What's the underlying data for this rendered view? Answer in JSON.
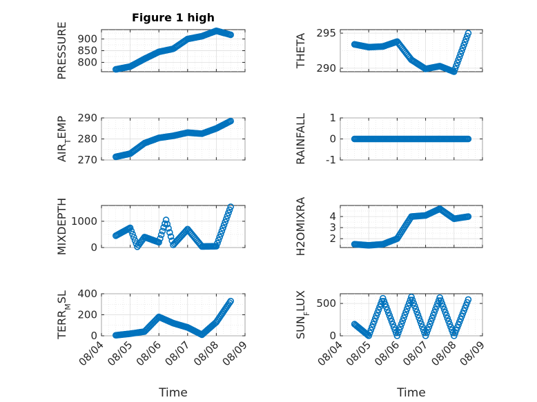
{
  "chart_data": [
    {
      "type": "scatter",
      "title": "Figure 1 high",
      "ylabel": "PRESSURE",
      "xlabel": "",
      "xlim": [
        "08/04",
        "08/09"
      ],
      "ylim": [
        760,
        940
      ],
      "yticks": [
        800,
        850,
        900
      ],
      "xticks": [
        "08/04",
        "08/05",
        "08/06",
        "08/07",
        "08/08",
        "08/09"
      ],
      "show_xticklabels": false,
      "grid": true,
      "series": [
        {
          "x": [
            "08/04 12:00",
            "08/05 00:00",
            "08/05 12:00",
            "08/06 00:00",
            "08/06 12:00",
            "08/07 00:00",
            "08/07 12:00",
            "08/08 00:00",
            "08/08 12:00"
          ],
          "y": [
            770,
            782,
            815,
            845,
            858,
            900,
            912,
            935,
            918
          ]
        }
      ]
    },
    {
      "type": "scatter",
      "title": "",
      "ylabel": "THETA",
      "xlabel": "",
      "xlim": [
        "08/04",
        "08/09"
      ],
      "ylim": [
        289.5,
        295.5
      ],
      "yticks": [
        290,
        295
      ],
      "xticks": [
        "08/04",
        "08/05",
        "08/06",
        "08/07",
        "08/08",
        "08/09"
      ],
      "show_xticklabels": false,
      "grid": true,
      "series": [
        {
          "x": [
            "08/04 12:00",
            "08/05 00:00",
            "08/05 12:00",
            "08/06 00:00",
            "08/06 12:00",
            "08/07 00:00",
            "08/07 12:00",
            "08/08 00:00",
            "08/08 12:00"
          ],
          "y": [
            293.4,
            293.0,
            293.1,
            293.8,
            291.2,
            289.9,
            290.3,
            289.5,
            295.0
          ]
        }
      ]
    },
    {
      "type": "scatter",
      "title": "",
      "ylabel": "AIR_TEMP",
      "xlabel": "",
      "xlim": [
        "08/04",
        "08/09"
      ],
      "ylim": [
        270,
        290
      ],
      "yticks": [
        270,
        280,
        290
      ],
      "xticks": [
        "08/04",
        "08/05",
        "08/06",
        "08/07",
        "08/08",
        "08/09"
      ],
      "show_xticklabels": false,
      "grid": true,
      "series": [
        {
          "x": [
            "08/04 12:00",
            "08/05 00:00",
            "08/05 12:00",
            "08/06 00:00",
            "08/06 12:00",
            "08/07 00:00",
            "08/07 12:00",
            "08/08 00:00",
            "08/08 12:00"
          ],
          "y": [
            271.5,
            273.0,
            278.0,
            280.5,
            281.5,
            283.0,
            282.5,
            285.0,
            288.5
          ]
        }
      ]
    },
    {
      "type": "scatter",
      "title": "",
      "ylabel": "RAINFALL",
      "xlabel": "",
      "xlim": [
        "08/04",
        "08/09"
      ],
      "ylim": [
        -1,
        1
      ],
      "yticks": [
        -1,
        0,
        1
      ],
      "xticks": [
        "08/04",
        "08/05",
        "08/06",
        "08/07",
        "08/08",
        "08/09"
      ],
      "show_xticklabels": false,
      "grid": true,
      "series": [
        {
          "x": [
            "08/04 12:00",
            "08/05 00:00",
            "08/05 12:00",
            "08/06 00:00",
            "08/06 12:00",
            "08/07 00:00",
            "08/07 12:00",
            "08/08 00:00",
            "08/08 12:00"
          ],
          "y": [
            0,
            0,
            0,
            0,
            0,
            0,
            0,
            0,
            0
          ]
        }
      ]
    },
    {
      "type": "scatter",
      "title": "",
      "ylabel": "MIXDEPTH",
      "xlabel": "",
      "xlim": [
        "08/04",
        "08/09"
      ],
      "ylim": [
        0,
        1600
      ],
      "yticks": [
        0,
        1000
      ],
      "xticks": [
        "08/04",
        "08/05",
        "08/06",
        "08/07",
        "08/08",
        "08/09"
      ],
      "show_xticklabels": false,
      "grid": true,
      "series": [
        {
          "x": [
            "08/04 12:00",
            "08/05 00:00",
            "08/05 06:00",
            "08/05 12:00",
            "08/06 00:00",
            "08/06 06:00",
            "08/06 12:00",
            "08/07 00:00",
            "08/07 12:00",
            "08/08 00:00",
            "08/08 12:00"
          ],
          "y": [
            450,
            750,
            30,
            400,
            200,
            1050,
            100,
            700,
            40,
            50,
            1550
          ]
        }
      ]
    },
    {
      "type": "scatter",
      "title": "",
      "ylabel": "H2OMIXRA",
      "xlabel": "",
      "xlim": [
        "08/04",
        "08/09"
      ],
      "ylim": [
        1.2,
        5.0
      ],
      "yticks": [
        2,
        3,
        4
      ],
      "xticks": [
        "08/04",
        "08/05",
        "08/06",
        "08/07",
        "08/08",
        "08/09"
      ],
      "show_xticklabels": false,
      "grid": true,
      "series": [
        {
          "x": [
            "08/04 12:00",
            "08/05 00:00",
            "08/05 12:00",
            "08/06 00:00",
            "08/06 12:00",
            "08/07 00:00",
            "08/07 12:00",
            "08/08 00:00",
            "08/08 12:00"
          ],
          "y": [
            1.5,
            1.4,
            1.5,
            2.0,
            4.0,
            4.1,
            4.7,
            3.8,
            4.0
          ]
        }
      ]
    },
    {
      "type": "scatter",
      "title": "",
      "ylabel": "TERR_MSL",
      "xlabel": "Time",
      "xlim": [
        "08/04",
        "08/09"
      ],
      "ylim": [
        0,
        400
      ],
      "yticks": [
        0,
        200,
        400
      ],
      "xticks": [
        "08/04",
        "08/05",
        "08/06",
        "08/07",
        "08/08",
        "08/09"
      ],
      "show_xticklabels": true,
      "grid": true,
      "series": [
        {
          "x": [
            "08/04 12:00",
            "08/05 00:00",
            "08/05 12:00",
            "08/06 00:00",
            "08/06 12:00",
            "08/07 00:00",
            "08/07 12:00",
            "08/08 00:00",
            "08/08 12:00"
          ],
          "y": [
            5,
            20,
            40,
            180,
            120,
            80,
            10,
            130,
            330
          ]
        }
      ]
    },
    {
      "type": "scatter",
      "title": "",
      "ylabel": "SUN_FLUX",
      "xlabel": "Time",
      "xlim": [
        "08/04",
        "08/09"
      ],
      "ylim": [
        0,
        650
      ],
      "yticks": [
        0,
        500
      ],
      "xticks": [
        "08/04",
        "08/05",
        "08/06",
        "08/07",
        "08/08",
        "08/09"
      ],
      "show_xticklabels": true,
      "grid": true,
      "series": [
        {
          "x": [
            "08/04 12:00",
            "08/05 00:00",
            "08/05 12:00",
            "08/06 00:00",
            "08/06 12:00",
            "08/07 00:00",
            "08/07 12:00",
            "08/08 00:00",
            "08/08 12:00"
          ],
          "y": [
            180,
            0,
            580,
            0,
            600,
            0,
            590,
            0,
            560
          ]
        }
      ]
    }
  ]
}
